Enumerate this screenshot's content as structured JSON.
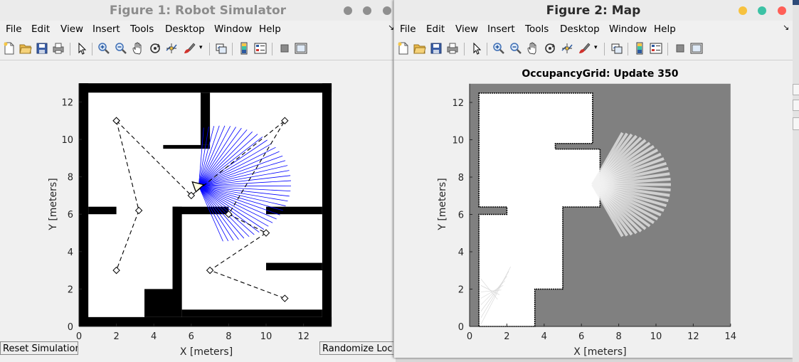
{
  "fig1": {
    "title": "Figure 1: Robot Simulator",
    "menu": [
      "File",
      "Edit",
      "View",
      "Insert",
      "Tools",
      "Desktop",
      "Window",
      "Help"
    ],
    "xlabel": "X [meters]",
    "ylabel": "Y [meters]",
    "xticks": [
      "0",
      "2",
      "4",
      "6",
      "8",
      "10",
      "12"
    ],
    "yticks": [
      "0",
      "2",
      "4",
      "6",
      "8",
      "10",
      "12"
    ],
    "reset_label": "Reset Simulation",
    "randomize_label": "Randomize Loc...",
    "waypoints_a": [
      [
        2,
        11
      ],
      [
        3.2,
        6.2
      ],
      [
        2,
        3
      ]
    ],
    "waypoints_b": [
      [
        2,
        11
      ],
      [
        6,
        7
      ],
      [
        11,
        11
      ],
      [
        8,
        6
      ],
      [
        10,
        5
      ],
      [
        7,
        3
      ],
      [
        11,
        1.5
      ]
    ],
    "robot": [
      6.4,
      7.5
    ]
  },
  "fig2": {
    "title": "Figure 2: Map",
    "menu": [
      "File",
      "Edit",
      "View",
      "Insert",
      "Tools",
      "Desktop",
      "Window",
      "Help"
    ],
    "plot_title": "OccupancyGrid: Update 350",
    "xlabel": "X [meters]",
    "ylabel": "Y [meters]",
    "xticks": [
      "0",
      "2",
      "4",
      "6",
      "8",
      "10",
      "12",
      "14"
    ],
    "yticks": [
      "0",
      "2",
      "4",
      "6",
      "8",
      "10",
      "12"
    ]
  },
  "colors": {
    "close": "#ff5f57",
    "min": "#f7c23f",
    "max": "#3cc2a5",
    "scan": "#0000ff",
    "unknown": "#808080"
  }
}
